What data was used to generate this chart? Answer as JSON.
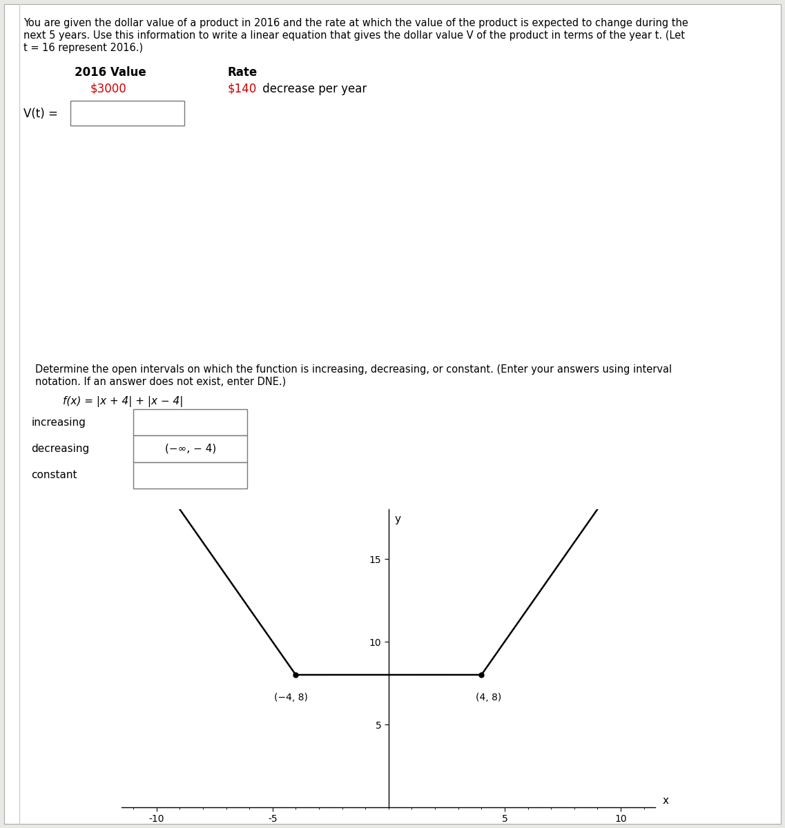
{
  "background_color": "#e8e8e4",
  "page_bg": "#ffffff",
  "top_text_line1": "You are given the dollar value of a product in 2016 and the rate at which the value of the product is expected to change during the",
  "top_text_line2": "next 5 years. Use this information to write a linear equation that gives the dollar value V of the product in terms of the year t. (Let",
  "top_text_line3": "t = 16 represent 2016.)",
  "table_header_col1": "2016 Value",
  "table_header_col2": "Rate",
  "table_val1": "$3000",
  "table_val1_color": "#cc0000",
  "table_val2_dollar": "$140",
  "table_val2_rest": " decrease per year",
  "vt_label": "V(t) =",
  "second_problem_line1": "Determine the open intervals on which the function is increasing, decreasing, or constant. (Enter your answers using interval",
  "second_problem_line2": "notation. If an answer does not exist, enter DNE.)",
  "fx_label": "f(x) = |x + 4| + |x − 4|",
  "increasing_label": "increasing",
  "decreasing_label": "decreasing",
  "constant_label": "constant",
  "decreasing_value": "(−∞, − 4)",
  "plot_xlim": [
    -11.5,
    11.5
  ],
  "plot_ylim": [
    0,
    18
  ],
  "plot_xticks": [
    -10,
    -5,
    5,
    10
  ],
  "plot_yticks": [
    5,
    10,
    15
  ],
  "plot_xlabel": "x",
  "plot_ylabel": "y",
  "point1": [
    -4,
    8
  ],
  "point2": [
    4,
    8
  ],
  "point1_label": "(−4, 8)",
  "point2_label": "(4, 8)",
  "line_color": "#000000",
  "line_width": 1.8,
  "dot_color": "#000000",
  "dot_size": 30,
  "font_size_top": 10.5,
  "font_size_table": 12,
  "font_size_labels": 11,
  "font_size_axis": 10
}
